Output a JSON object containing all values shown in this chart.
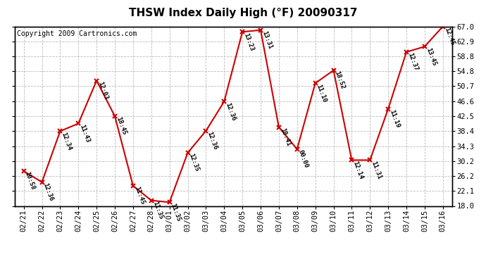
{
  "title": "THSW Index Daily High (°F) 20090317",
  "copyright": "Copyright 2009 Cartronics.com",
  "dates": [
    "02/21",
    "02/22",
    "02/23",
    "02/24",
    "02/25",
    "02/26",
    "02/27",
    "02/28",
    "03/01",
    "03/02",
    "03/03",
    "03/04",
    "03/05",
    "03/06",
    "03/07",
    "03/08",
    "03/09",
    "03/10",
    "03/11",
    "03/12",
    "03/13",
    "03/14",
    "03/15",
    "03/16"
  ],
  "values": [
    27.5,
    24.5,
    38.4,
    40.5,
    52.2,
    42.5,
    23.5,
    19.5,
    19.0,
    32.5,
    38.5,
    46.5,
    65.5,
    66.0,
    39.5,
    33.5,
    51.5,
    55.0,
    30.5,
    30.5,
    44.5,
    60.0,
    61.5,
    67.0
  ],
  "labels": [
    "10:58",
    "12:36",
    "12:34",
    "11:43",
    "12:03",
    "18:45",
    "11:45",
    "11:35",
    "11:35",
    "12:35",
    "12:36",
    "12:36",
    "13:23",
    "13:31",
    "10:41",
    "00:00",
    "11:10",
    "18:52",
    "12:14",
    "11:31",
    "11:19",
    "12:37",
    "13:45",
    "12:45"
  ],
  "ylim": [
    18.0,
    67.0
  ],
  "yticks": [
    18.0,
    22.1,
    26.2,
    30.2,
    34.3,
    38.4,
    42.5,
    46.6,
    50.7,
    54.8,
    58.8,
    62.9,
    67.0
  ],
  "line_color": "#cc0000",
  "marker_color": "#cc0000",
  "bg_color": "#ffffff",
  "grid_color": "#bbbbbb",
  "title_fontsize": 11,
  "label_fontsize": 6.5,
  "copyright_fontsize": 7,
  "tick_fontsize": 7.5
}
